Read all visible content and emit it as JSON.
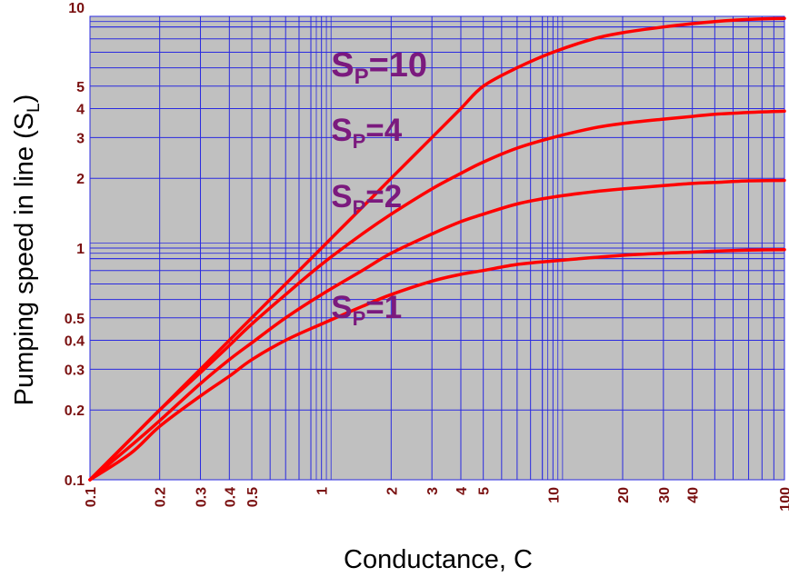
{
  "chart_data": {
    "type": "line",
    "title": "",
    "xlabel": "Conductance, C",
    "ylabel_main": "Pumping speed in line (S",
    "ylabel_sub": "L",
    "ylabel_close": ")",
    "xscale": "log",
    "yscale": "log",
    "xlim": [
      0.1,
      100
    ],
    "ylim": [
      0.1,
      10
    ],
    "grid": true,
    "x_ticks": [
      {
        "v": 0.1,
        "label": "0.1"
      },
      {
        "v": 0.2,
        "label": "0.2"
      },
      {
        "v": 0.3,
        "label": "0.3"
      },
      {
        "v": 0.4,
        "label": "0.4"
      },
      {
        "v": 0.5,
        "label": "0.5"
      },
      {
        "v": 1,
        "label": "1"
      },
      {
        "v": 2,
        "label": "2"
      },
      {
        "v": 3,
        "label": "3"
      },
      {
        "v": 4,
        "label": "4"
      },
      {
        "v": 5,
        "label": "5"
      },
      {
        "v": 10,
        "label": "10"
      },
      {
        "v": 20,
        "label": "20"
      },
      {
        "v": 30,
        "label": "30"
      },
      {
        "v": 40,
        "label": "40"
      },
      {
        "v": 100,
        "label": "100"
      }
    ],
    "y_ticks": [
      {
        "v": 0.1,
        "label": "0.1"
      },
      {
        "v": 0.2,
        "label": "0.2"
      },
      {
        "v": 0.3,
        "label": "0.3"
      },
      {
        "v": 0.4,
        "label": "0.4"
      },
      {
        "v": 0.5,
        "label": "0.5"
      },
      {
        "v": 1,
        "label": "1"
      },
      {
        "v": 2,
        "label": "2"
      },
      {
        "v": 3,
        "label": "3"
      },
      {
        "v": 4,
        "label": "4"
      },
      {
        "v": 5,
        "label": "5"
      },
      {
        "v": 10,
        "label": "10"
      }
    ],
    "x": [
      0.1,
      0.15,
      0.2,
      0.3,
      0.4,
      0.5,
      0.7,
      1,
      1.5,
      2,
      3,
      4,
      5,
      7,
      10,
      15,
      20,
      30,
      40,
      50,
      70,
      100
    ],
    "series": [
      {
        "name": "Sp=10",
        "sp": 10,
        "values": [
          0.1,
          0.15,
          0.2,
          0.3,
          0.4,
          0.5,
          0.7,
          1.0,
          1.5,
          2.0,
          3.0,
          4.0,
          5.0,
          6.0,
          7.0,
          8.0,
          8.5,
          9.0,
          9.3,
          9.5,
          9.7,
          9.8
        ]
      },
      {
        "name": "Sp=4",
        "sp": 4,
        "values": [
          0.1,
          0.15,
          0.2,
          0.29,
          0.38,
          0.47,
          0.63,
          0.85,
          1.15,
          1.4,
          1.8,
          2.1,
          2.35,
          2.7,
          3.0,
          3.3,
          3.45,
          3.6,
          3.7,
          3.78,
          3.85,
          3.9
        ]
      },
      {
        "name": "Sp=2",
        "sp": 2,
        "values": [
          0.1,
          0.14,
          0.18,
          0.26,
          0.33,
          0.39,
          0.5,
          0.63,
          0.8,
          0.95,
          1.15,
          1.3,
          1.4,
          1.55,
          1.66,
          1.75,
          1.8,
          1.86,
          1.9,
          1.92,
          1.95,
          1.96
        ]
      },
      {
        "name": "Sp=1",
        "sp": 1,
        "values": [
          0.1,
          0.13,
          0.17,
          0.23,
          0.28,
          0.33,
          0.4,
          0.47,
          0.56,
          0.63,
          0.72,
          0.77,
          0.8,
          0.85,
          0.88,
          0.91,
          0.93,
          0.95,
          0.96,
          0.97,
          0.98,
          0.985
        ]
      }
    ],
    "annotations": [
      {
        "main": "S",
        "sub": "P",
        "rest": "=10",
        "x": 1.1,
        "y": 5.5,
        "size": 38
      },
      {
        "main": "S",
        "sub": "P",
        "rest": "=4",
        "x": 1.1,
        "y": 2.9,
        "size": 35
      },
      {
        "main": "S",
        "sub": "P",
        "rest": "=2",
        "x": 1.1,
        "y": 1.5,
        "size": 35
      },
      {
        "main": "S",
        "sub": "P",
        "rest": "=1",
        "x": 1.1,
        "y": 0.5,
        "size": 35
      }
    ],
    "colors": {
      "plot_bg": "#c0c0c0",
      "grid": "#2a2ae0",
      "curve": "#ff0000",
      "tick_label": "#7a1010",
      "annotation": "#7b1a7e"
    }
  }
}
